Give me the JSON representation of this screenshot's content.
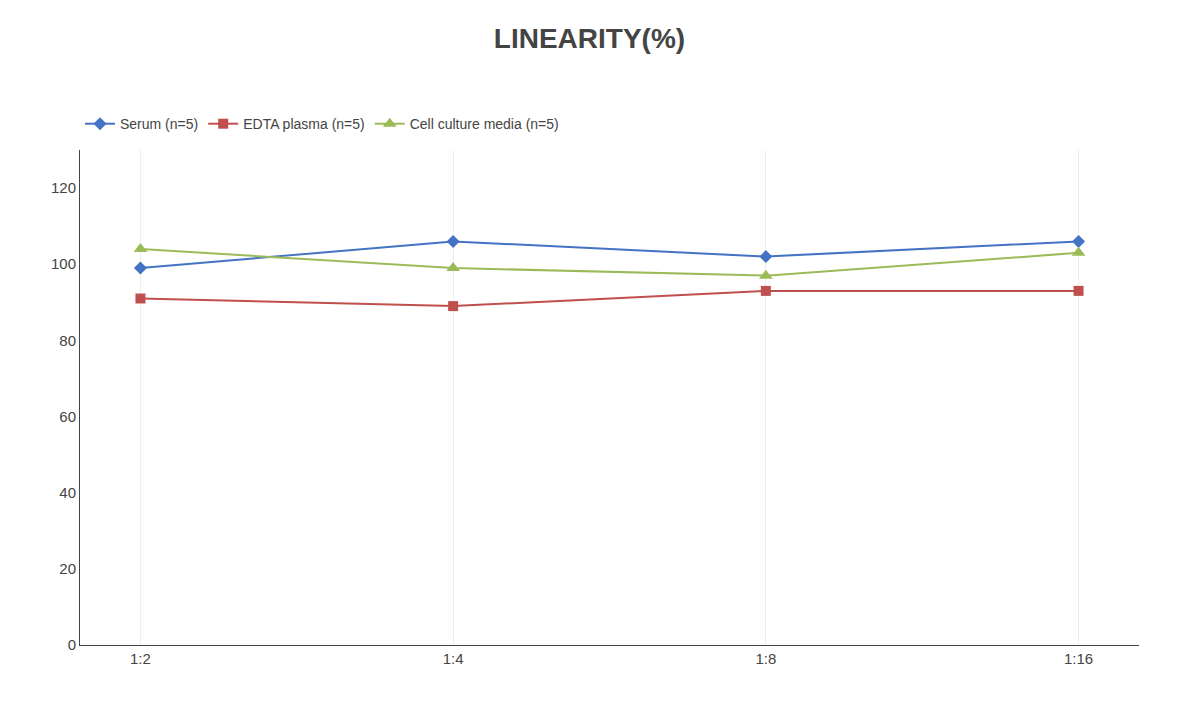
{
  "chart_data": {
    "type": "line",
    "title": "LINEARITY(%)",
    "categories": [
      "1:2",
      "1:4",
      "1:8",
      "1:16"
    ],
    "series": [
      {
        "name": "Serum (n=5)",
        "color": "#4472C4",
        "marker": "diamond",
        "values": [
          99,
          106,
          102,
          106
        ]
      },
      {
        "name": "EDTA plasma (n=5)",
        "color": "#C0504D",
        "marker": "square",
        "values": [
          91,
          89,
          93,
          93
        ]
      },
      {
        "name": "Cell culture media (n=5)",
        "color": "#9BBB59",
        "marker": "triangle-up",
        "values": [
          104,
          99,
          97,
          103
        ]
      }
    ],
    "ylim": [
      0,
      130
    ],
    "yticks": [
      0,
      20,
      40,
      60,
      80,
      100,
      120
    ],
    "grid": true,
    "legend": "upper left"
  }
}
